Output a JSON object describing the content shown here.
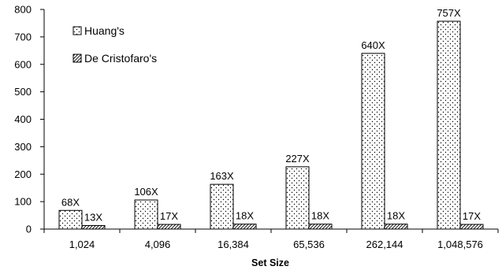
{
  "chart_data": {
    "type": "bar",
    "xlabel": "Set Size",
    "ylabel": "",
    "ylim": [
      0,
      800
    ],
    "yticks": [
      0,
      100,
      200,
      300,
      400,
      500,
      600,
      700,
      800
    ],
    "grid": false,
    "legend_position": "top-left",
    "categories": [
      "1,024",
      "4,096",
      "16,384",
      "65,536",
      "262,144",
      "1,048,576"
    ],
    "series": [
      {
        "name": "Huang's",
        "pattern": "dots",
        "values": [
          68,
          106,
          163,
          227,
          640,
          757
        ],
        "labels": [
          "68X",
          "106X",
          "163X",
          "227X",
          "640X",
          "757X"
        ]
      },
      {
        "name": "De Cristofaro's",
        "pattern": "diagonal-hatch",
        "values": [
          13,
          17,
          18,
          18,
          18,
          17
        ],
        "labels": [
          "13X",
          "17X",
          "18X",
          "18X",
          "18X",
          "17X"
        ]
      }
    ],
    "colors": {
      "axis": "#000000",
      "bar_fill": "#ffffff",
      "bar_stroke": "#000000"
    }
  }
}
